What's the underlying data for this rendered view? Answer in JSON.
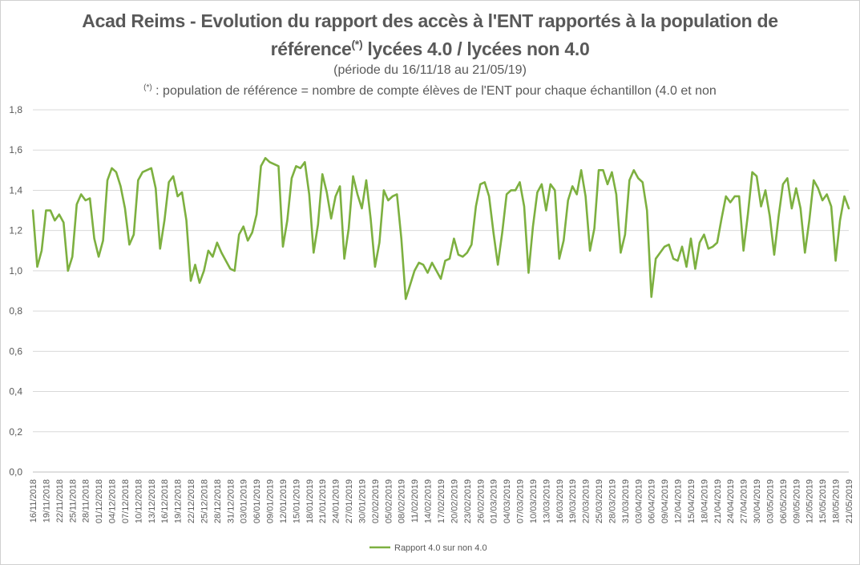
{
  "chart_data": {
    "type": "line",
    "title_line1": "Acad Reims - Evolution du rapport des accès à l'ENT rapportés à la population de",
    "title_line2_pre": "référence",
    "title_line2_sup": "(*)",
    "title_line2_post": " lycées 4.0 / lycées non 4.0",
    "subtitle": "(période du 16/11/18 au 21/05/19)",
    "note_sup": "(*)",
    "note_text": " : population  de référence = nombre de compte élèves  de l'ENT pour chaque échantillon  (4.0 et non",
    "ylim": [
      0,
      1.8
    ],
    "yticks": [
      "0,0",
      "0,2",
      "0,4",
      "0,6",
      "0,8",
      "1,0",
      "1,2",
      "1,4",
      "1,6",
      "1,8"
    ],
    "x_tick_labels": [
      "16/11/2018",
      "19/11/2018",
      "22/11/2018",
      "25/11/2018",
      "28/11/2018",
      "01/12/2018",
      "04/12/2018",
      "07/12/2018",
      "10/12/2018",
      "13/12/2018",
      "16/12/2018",
      "19/12/2018",
      "22/12/2018",
      "25/12/2018",
      "28/12/2018",
      "31/12/2018",
      "03/01/2019",
      "06/01/2019",
      "09/01/2019",
      "12/01/2019",
      "15/01/2019",
      "18/01/2019",
      "21/01/2019",
      "24/01/2019",
      "27/01/2019",
      "30/01/2019",
      "02/02/2019",
      "05/02/2019",
      "08/02/2019",
      "11/02/2019",
      "14/02/2019",
      "17/02/2019",
      "20/02/2019",
      "23/02/2019",
      "26/02/2019",
      "01/03/2019",
      "04/03/2019",
      "07/03/2019",
      "10/03/2019",
      "13/03/2019",
      "16/03/2019",
      "19/03/2019",
      "22/03/2019",
      "25/03/2019",
      "28/03/2019",
      "31/03/2019",
      "03/04/2019",
      "06/04/2019",
      "09/04/2019",
      "12/04/2019",
      "15/04/2019",
      "18/04/2019",
      "21/04/2019",
      "24/04/2019",
      "27/04/2019",
      "30/04/2019",
      "03/05/2019",
      "06/05/2019",
      "09/05/2019",
      "12/05/2019",
      "15/05/2019",
      "18/05/2019",
      "21/05/2019"
    ],
    "grid": true,
    "legend_position": "bottom",
    "series": [
      {
        "name": "Rapport 4.0 sur non 4.0",
        "color": "#7db040",
        "values": [
          1.3,
          1.02,
          1.1,
          1.3,
          1.3,
          1.25,
          1.28,
          1.24,
          1.0,
          1.07,
          1.33,
          1.38,
          1.35,
          1.36,
          1.16,
          1.07,
          1.15,
          1.45,
          1.51,
          1.49,
          1.42,
          1.31,
          1.13,
          1.18,
          1.45,
          1.49,
          1.5,
          1.51,
          1.41,
          1.11,
          1.25,
          1.44,
          1.47,
          1.37,
          1.39,
          1.25,
          0.95,
          1.03,
          0.94,
          1.0,
          1.1,
          1.07,
          1.14,
          1.09,
          1.05,
          1.01,
          1.0,
          1.18,
          1.22,
          1.15,
          1.19,
          1.28,
          1.52,
          1.56,
          1.54,
          1.53,
          1.52,
          1.12,
          1.25,
          1.46,
          1.52,
          1.51,
          1.54,
          1.38,
          1.09,
          1.23,
          1.48,
          1.39,
          1.26,
          1.37,
          1.42,
          1.06,
          1.21,
          1.47,
          1.38,
          1.31,
          1.45,
          1.26,
          1.02,
          1.14,
          1.4,
          1.35,
          1.37,
          1.38,
          1.16,
          0.86,
          0.93,
          1.0,
          1.04,
          1.03,
          0.99,
          1.04,
          1.0,
          0.96,
          1.05,
          1.06,
          1.16,
          1.08,
          1.07,
          1.09,
          1.13,
          1.32,
          1.43,
          1.44,
          1.37,
          1.19,
          1.03,
          1.19,
          1.38,
          1.4,
          1.4,
          1.44,
          1.32,
          0.99,
          1.22,
          1.39,
          1.43,
          1.3,
          1.43,
          1.4,
          1.06,
          1.15,
          1.35,
          1.42,
          1.38,
          1.5,
          1.37,
          1.1,
          1.21,
          1.5,
          1.5,
          1.43,
          1.49,
          1.38,
          1.09,
          1.18,
          1.45,
          1.5,
          1.46,
          1.44,
          1.3,
          0.87,
          1.06,
          1.09,
          1.12,
          1.13,
          1.06,
          1.05,
          1.12,
          1.02,
          1.16,
          1.01,
          1.14,
          1.18,
          1.11,
          1.12,
          1.14,
          1.26,
          1.37,
          1.34,
          1.37,
          1.37,
          1.1,
          1.28,
          1.49,
          1.47,
          1.32,
          1.4,
          1.27,
          1.08,
          1.27,
          1.43,
          1.46,
          1.31,
          1.41,
          1.31,
          1.09,
          1.25,
          1.45,
          1.41,
          1.35,
          1.38,
          1.32,
          1.05,
          1.25,
          1.37,
          1.31
        ]
      }
    ]
  }
}
